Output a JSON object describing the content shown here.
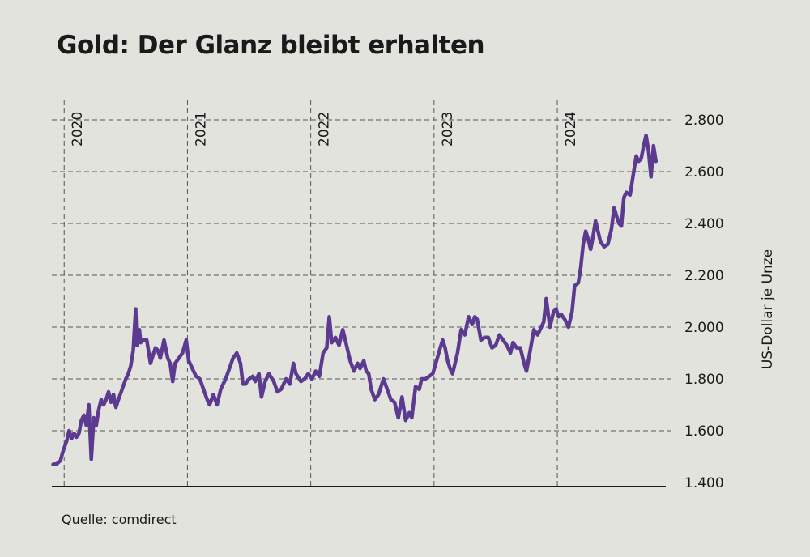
{
  "chart_data": {
    "type": "line",
    "title": "Gold: Der Glanz bleibt erhalten",
    "ylabel": "US-Dollar je Unze",
    "source": "Quelle: comdirect",
    "ylim": [
      1400,
      2800
    ],
    "yticks": [
      1400,
      1600,
      1800,
      2000,
      2200,
      2400,
      2600,
      2800
    ],
    "ytick_labels": [
      "1.400",
      "1.600",
      "1.800",
      "2.000",
      "2.200",
      "2.400",
      "2.600",
      "2.800"
    ],
    "xlim": [
      2019.9,
      2024.88
    ],
    "year_markers": [
      {
        "x": 2020,
        "label": "2020"
      },
      {
        "x": 2021,
        "label": "2021"
      },
      {
        "x": 2022,
        "label": "2022"
      },
      {
        "x": 2023,
        "label": "2023"
      },
      {
        "x": 2024,
        "label": "2024"
      }
    ],
    "grid": true,
    "line_color": "#5b3a8f",
    "series": [
      {
        "values": [
          [
            2019.91,
            1470
          ],
          [
            2019.94,
            1472
          ],
          [
            2019.97,
            1485
          ],
          [
            2019.99,
            1520
          ],
          [
            2020.02,
            1560
          ],
          [
            2020.04,
            1600
          ],
          [
            2020.06,
            1570
          ],
          [
            2020.08,
            1590
          ],
          [
            2020.1,
            1575
          ],
          [
            2020.12,
            1590
          ],
          [
            2020.14,
            1640
          ],
          [
            2020.16,
            1660
          ],
          [
            2020.18,
            1620
          ],
          [
            2020.2,
            1700
          ],
          [
            2020.22,
            1490
          ],
          [
            2020.24,
            1650
          ],
          [
            2020.26,
            1620
          ],
          [
            2020.28,
            1680
          ],
          [
            2020.3,
            1720
          ],
          [
            2020.32,
            1700
          ],
          [
            2020.34,
            1720
          ],
          [
            2020.36,
            1750
          ],
          [
            2020.38,
            1710
          ],
          [
            2020.4,
            1740
          ],
          [
            2020.42,
            1690
          ],
          [
            2020.44,
            1720
          ],
          [
            2020.47,
            1760
          ],
          [
            2020.5,
            1800
          ],
          [
            2020.52,
            1820
          ],
          [
            2020.54,
            1850
          ],
          [
            2020.56,
            1910
          ],
          [
            2020.58,
            2070
          ],
          [
            2020.59,
            1930
          ],
          [
            2020.61,
            1990
          ],
          [
            2020.62,
            1940
          ],
          [
            2020.64,
            1950
          ],
          [
            2020.67,
            1950
          ],
          [
            2020.7,
            1860
          ],
          [
            2020.72,
            1890
          ],
          [
            2020.74,
            1920
          ],
          [
            2020.76,
            1910
          ],
          [
            2020.78,
            1880
          ],
          [
            2020.81,
            1950
          ],
          [
            2020.84,
            1880
          ],
          [
            2020.86,
            1860
          ],
          [
            2020.88,
            1790
          ],
          [
            2020.9,
            1860
          ],
          [
            2020.93,
            1880
          ],
          [
            2020.96,
            1900
          ],
          [
            2020.99,
            1950
          ],
          [
            2021.01,
            1870
          ],
          [
            2021.03,
            1850
          ],
          [
            2021.05,
            1830
          ],
          [
            2021.07,
            1810
          ],
          [
            2021.1,
            1800
          ],
          [
            2021.13,
            1760
          ],
          [
            2021.16,
            1720
          ],
          [
            2021.18,
            1700
          ],
          [
            2021.21,
            1740
          ],
          [
            2021.24,
            1700
          ],
          [
            2021.27,
            1760
          ],
          [
            2021.31,
            1800
          ],
          [
            2021.34,
            1840
          ],
          [
            2021.37,
            1880
          ],
          [
            2021.4,
            1900
          ],
          [
            2021.43,
            1860
          ],
          [
            2021.45,
            1780
          ],
          [
            2021.47,
            1780
          ],
          [
            2021.5,
            1800
          ],
          [
            2021.53,
            1810
          ],
          [
            2021.55,
            1790
          ],
          [
            2021.58,
            1820
          ],
          [
            2021.6,
            1730
          ],
          [
            2021.63,
            1790
          ],
          [
            2021.66,
            1820
          ],
          [
            2021.7,
            1790
          ],
          [
            2021.73,
            1750
          ],
          [
            2021.76,
            1760
          ],
          [
            2021.8,
            1800
          ],
          [
            2021.83,
            1780
          ],
          [
            2021.86,
            1860
          ],
          [
            2021.88,
            1820
          ],
          [
            2021.92,
            1790
          ],
          [
            2021.95,
            1800
          ],
          [
            2021.98,
            1820
          ],
          [
            2022.01,
            1800
          ],
          [
            2022.04,
            1830
          ],
          [
            2022.07,
            1810
          ],
          [
            2022.1,
            1900
          ],
          [
            2022.13,
            1920
          ],
          [
            2022.15,
            2040
          ],
          [
            2022.17,
            1940
          ],
          [
            2022.2,
            1960
          ],
          [
            2022.23,
            1930
          ],
          [
            2022.26,
            1990
          ],
          [
            2022.29,
            1930
          ],
          [
            2022.32,
            1870
          ],
          [
            2022.35,
            1830
          ],
          [
            2022.38,
            1860
          ],
          [
            2022.4,
            1840
          ],
          [
            2022.43,
            1870
          ],
          [
            2022.45,
            1830
          ],
          [
            2022.47,
            1820
          ],
          [
            2022.49,
            1760
          ],
          [
            2022.52,
            1720
          ],
          [
            2022.55,
            1740
          ],
          [
            2022.59,
            1800
          ],
          [
            2022.62,
            1760
          ],
          [
            2022.65,
            1720
          ],
          [
            2022.68,
            1710
          ],
          [
            2022.71,
            1650
          ],
          [
            2022.74,
            1730
          ],
          [
            2022.77,
            1640
          ],
          [
            2022.8,
            1670
          ],
          [
            2022.82,
            1650
          ],
          [
            2022.85,
            1770
          ],
          [
            2022.88,
            1760
          ],
          [
            2022.9,
            1800
          ],
          [
            2022.93,
            1800
          ],
          [
            2022.96,
            1810
          ],
          [
            2022.99,
            1820
          ],
          [
            2023.02,
            1870
          ],
          [
            2023.05,
            1920
          ],
          [
            2023.07,
            1950
          ],
          [
            2023.09,
            1920
          ],
          [
            2023.11,
            1870
          ],
          [
            2023.13,
            1840
          ],
          [
            2023.15,
            1820
          ],
          [
            2023.19,
            1900
          ],
          [
            2023.22,
            1990
          ],
          [
            2023.25,
            1970
          ],
          [
            2023.28,
            2040
          ],
          [
            2023.31,
            2010
          ],
          [
            2023.33,
            2040
          ],
          [
            2023.35,
            2030
          ],
          [
            2023.38,
            1950
          ],
          [
            2023.41,
            1960
          ],
          [
            2023.44,
            1960
          ],
          [
            2023.47,
            1920
          ],
          [
            2023.5,
            1930
          ],
          [
            2023.53,
            1970
          ],
          [
            2023.56,
            1950
          ],
          [
            2023.59,
            1930
          ],
          [
            2023.62,
            1900
          ],
          [
            2023.64,
            1940
          ],
          [
            2023.67,
            1920
          ],
          [
            2023.7,
            1920
          ],
          [
            2023.73,
            1860
          ],
          [
            2023.75,
            1830
          ],
          [
            2023.78,
            1910
          ],
          [
            2023.81,
            1990
          ],
          [
            2023.84,
            1970
          ],
          [
            2023.87,
            2000
          ],
          [
            2023.89,
            2020
          ],
          [
            2023.91,
            2110
          ],
          [
            2023.94,
            2000
          ],
          [
            2023.97,
            2060
          ],
          [
            2023.99,
            2070
          ],
          [
            2024.01,
            2040
          ],
          [
            2024.03,
            2050
          ],
          [
            2024.06,
            2030
          ],
          [
            2024.09,
            2000
          ],
          [
            2024.12,
            2060
          ],
          [
            2024.14,
            2160
          ],
          [
            2024.17,
            2170
          ],
          [
            2024.19,
            2230
          ],
          [
            2024.21,
            2320
          ],
          [
            2024.23,
            2370
          ],
          [
            2024.25,
            2340
          ],
          [
            2024.27,
            2300
          ],
          [
            2024.29,
            2350
          ],
          [
            2024.31,
            2410
          ],
          [
            2024.33,
            2370
          ],
          [
            2024.35,
            2330
          ],
          [
            2024.38,
            2310
          ],
          [
            2024.41,
            2320
          ],
          [
            2024.44,
            2380
          ],
          [
            2024.46,
            2460
          ],
          [
            2024.48,
            2430
          ],
          [
            2024.5,
            2400
          ],
          [
            2024.52,
            2390
          ],
          [
            2024.54,
            2500
          ],
          [
            2024.56,
            2520
          ],
          [
            2024.59,
            2510
          ],
          [
            2024.62,
            2600
          ],
          [
            2024.64,
            2660
          ],
          [
            2024.66,
            2640
          ],
          [
            2024.68,
            2650
          ],
          [
            2024.7,
            2700
          ],
          [
            2024.72,
            2740
          ],
          [
            2024.74,
            2680
          ],
          [
            2024.76,
            2580
          ],
          [
            2024.78,
            2700
          ],
          [
            2024.8,
            2640
          ]
        ]
      }
    ]
  }
}
